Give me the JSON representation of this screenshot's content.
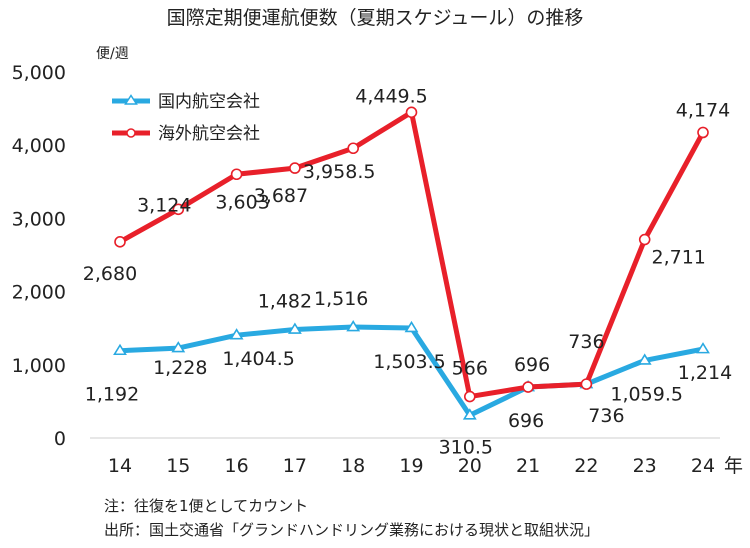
{
  "chart_data": {
    "type": "line",
    "title": "国際定期便運航便数（夏期スケジュール）の推移",
    "ylabel": "便/週",
    "xlabel": "年",
    "ylim": [
      0,
      5000
    ],
    "yticks": [
      "5,000",
      "4,000",
      "3,000",
      "2,000",
      "1,000",
      "0"
    ],
    "ytick_values": [
      5000,
      4000,
      3000,
      2000,
      1000,
      0
    ],
    "categories": [
      "14",
      "15",
      "16",
      "17",
      "18",
      "19",
      "20",
      "21",
      "22",
      "23",
      "24"
    ],
    "series": [
      {
        "name": "国内航空会社",
        "color": "#29a9e1",
        "marker": "triangle",
        "values": [
          1192,
          1228,
          1404.5,
          1482,
          1516,
          1503.5,
          310.5,
          696,
          736,
          1059.5,
          1214
        ],
        "labels": [
          "1,192",
          "1,228",
          "1,404.5",
          "1,482",
          "1,516",
          "1,503.5",
          "310.5",
          "696",
          "736",
          "1,059.5",
          "1,214"
        ]
      },
      {
        "name": "海外航空会社",
        "color": "#e8202a",
        "marker": "circle",
        "values": [
          2680,
          3124,
          3603,
          3687,
          3958.5,
          4449.5,
          566,
          696,
          736,
          2711,
          4174
        ],
        "labels": [
          "2,680",
          "3,124",
          "3,603",
          "3,687",
          "3,958.5",
          "4,449.5",
          "566",
          "696",
          "736",
          "2,711",
          "4,174"
        ]
      }
    ],
    "legend": "top-left",
    "grid": false
  },
  "notes": [
    "注：往復を1便としてカウント",
    "出所：国土交通省「グランドハンドリング業務における現状と取組状況」"
  ]
}
